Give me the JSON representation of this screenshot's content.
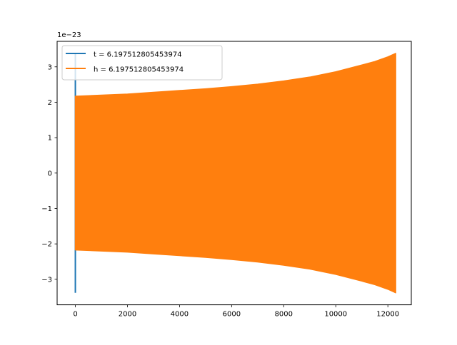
{
  "chart_data": {
    "type": "area",
    "title": "",
    "xlabel": "",
    "ylabel": "",
    "y_offset_label": "1e−23",
    "xlim": [
      -700,
      12900
    ],
    "ylim": [
      -3.72,
      3.72
    ],
    "x_ticks": [
      0,
      2000,
      4000,
      6000,
      8000,
      10000,
      12000
    ],
    "x_tick_labels": [
      "0",
      "2000",
      "4000",
      "6000",
      "8000",
      "10000",
      "12000"
    ],
    "y_ticks": [
      -3,
      -2,
      -1,
      0,
      1,
      2,
      3
    ],
    "y_tick_labels": [
      "−3",
      "−2",
      "−1",
      "0",
      "1",
      "2",
      "3"
    ],
    "grid": false,
    "legend_position": "upper-left",
    "series": [
      {
        "name": "t = 6.197512805453974",
        "color": "#1f77b4",
        "x": [
          0,
          0,
          0,
          0
        ],
        "y": [
          3.0,
          3.38,
          -3.38,
          -3.0
        ]
      },
      {
        "name": "h = 6.197512805453974",
        "color": "#ff7f0e",
        "upper_envelope": {
          "x": [
            0,
            1000,
            2000,
            3000,
            4000,
            5000,
            6000,
            7000,
            8000,
            9000,
            10000,
            11000,
            11500,
            12000,
            12300
          ],
          "y": [
            2.17,
            2.2,
            2.23,
            2.28,
            2.33,
            2.38,
            2.44,
            2.51,
            2.6,
            2.71,
            2.86,
            3.05,
            3.15,
            3.28,
            3.38
          ]
        },
        "lower_envelope": {
          "x": [
            0,
            1000,
            2000,
            3000,
            4000,
            5000,
            6000,
            7000,
            8000,
            9000,
            10000,
            11000,
            11500,
            12000,
            12300
          ],
          "y": [
            -2.17,
            -2.2,
            -2.23,
            -2.28,
            -2.33,
            -2.38,
            -2.44,
            -2.51,
            -2.6,
            -2.71,
            -2.86,
            -3.05,
            -3.15,
            -3.28,
            -3.38
          ]
        }
      }
    ]
  }
}
